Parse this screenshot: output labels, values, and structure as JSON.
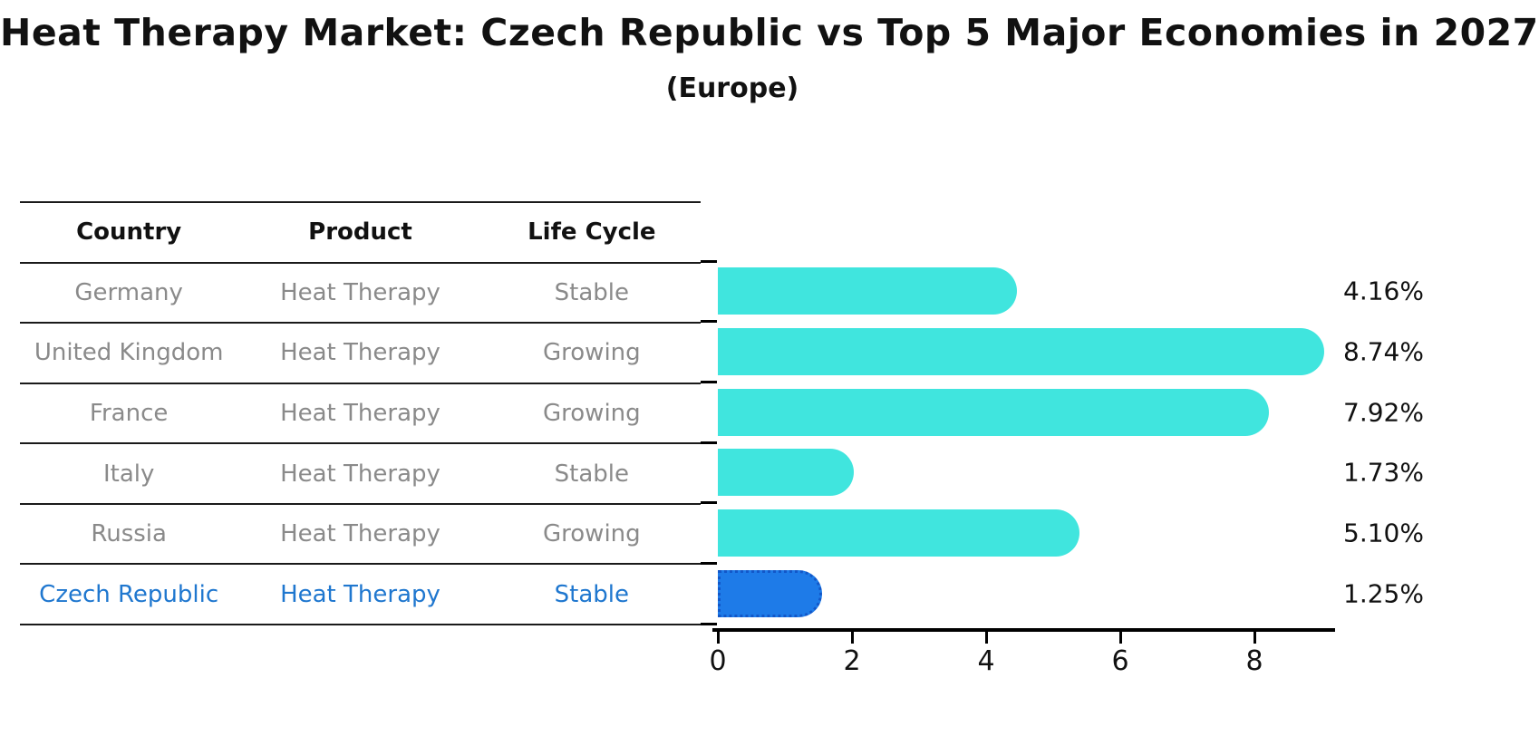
{
  "chart_data": {
    "type": "bar",
    "orientation": "horizontal",
    "title": "Heat Therapy Market: Czech Republic vs Top 5 Major Economies in 2027",
    "subtitle": "(Europe)",
    "table_headers": [
      "Country",
      "Product",
      "Life Cycle"
    ],
    "rows": [
      {
        "country": "Germany",
        "product": "Heat Therapy",
        "life_cycle": "Stable",
        "value": 4.16,
        "value_label": "4.16%",
        "highlight": false
      },
      {
        "country": "United Kingdom",
        "product": "Heat Therapy",
        "life_cycle": "Growing",
        "value": 8.74,
        "value_label": "8.74%",
        "highlight": false
      },
      {
        "country": "France",
        "product": "Heat Therapy",
        "life_cycle": "Growing",
        "value": 7.92,
        "value_label": "7.92%",
        "highlight": false
      },
      {
        "country": "Italy",
        "product": "Heat Therapy",
        "life_cycle": "Stable",
        "value": 1.73,
        "value_label": "1.73%",
        "highlight": false
      },
      {
        "country": "Russia",
        "product": "Heat Therapy",
        "life_cycle": "Growing",
        "value": 5.1,
        "value_label": "5.10%",
        "highlight": false
      },
      {
        "country": "Czech Republic",
        "product": "Heat Therapy",
        "life_cycle": "Stable",
        "value": 1.25,
        "value_label": "1.25%",
        "highlight": true
      }
    ],
    "x_ticks": [
      "0",
      "2",
      "4",
      "6",
      "8"
    ],
    "xlim": [
      0,
      9.16
    ],
    "grid": false,
    "legend_position": "none",
    "colors": {
      "bar": "#40E5DE",
      "highlight_bar": "#1E7BE8",
      "highlight_border": "#1257C8",
      "highlight_text": "#1F77CF",
      "row_text": "#8A8A8A",
      "header_text": "#111111",
      "value_text": "#111111",
      "axis": "#000000"
    }
  }
}
